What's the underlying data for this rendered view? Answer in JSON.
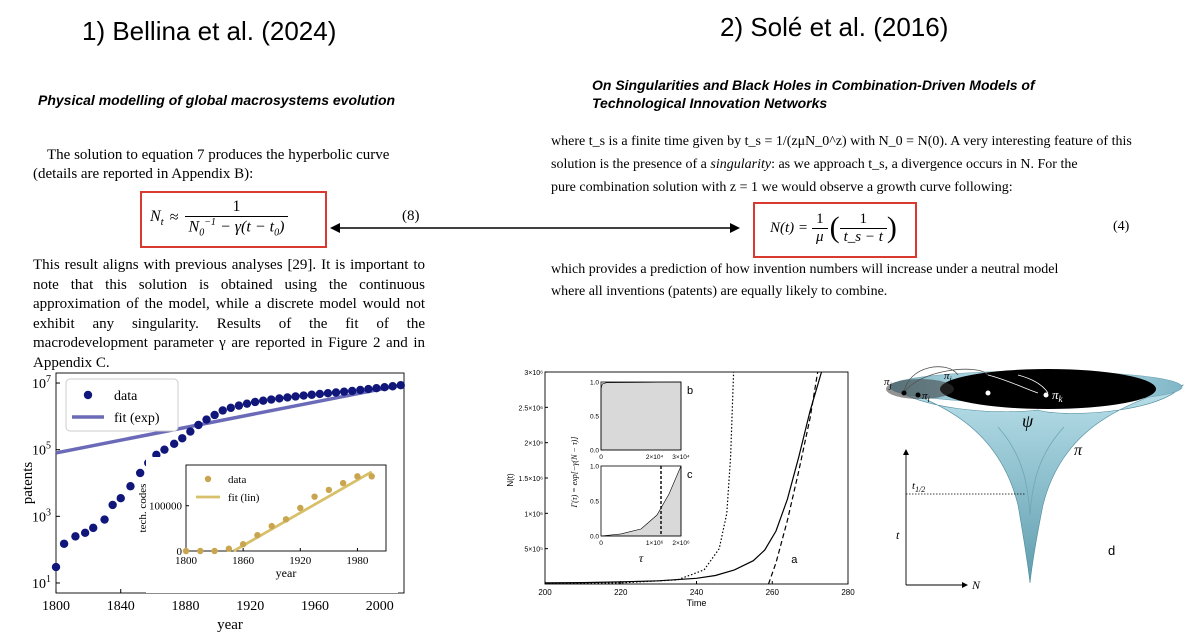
{
  "left": {
    "heading": "1) Bellina et al. (2024)",
    "paper_title": "Physical modelling of global macrosystems evolution",
    "intro_text": "The solution to equation 7 produces the hyperbolic curve (details are reported in Appendix B):",
    "eq_lhs": "N",
    "eq_lhs_sub": "t",
    "eq_approx": "≈",
    "eq_num": "1",
    "eq_den_a": "N",
    "eq_den_a_sub": "0",
    "eq_den_a_sup": "−1",
    "eq_den_b": " − γ(t − t",
    "eq_den_b_sub": "0",
    "eq_den_c": ")",
    "eq_number": "(8)",
    "body_text": "This result aligns with previous analyses [29]. It is important to note that this solution is obtained using the continuous approximation of the model, while a discrete model would not exhibit any singularity. Results of the fit of the macrodevelopment parameter γ are reported in Figure 2 and in Appendix C."
  },
  "right": {
    "heading": "2) Solé et al. (2016)",
    "paper_title_line1": "On Singularities and Black Holes in Combination-Driven Models of",
    "paper_title_line2": "Technological Innovation Networks",
    "text_line1": "where t_s is a finite time given by t_s = 1/(zμN_0^z) with N_0 = N(0). A very interesting feature of this",
    "text_line2a": "solution is the presence of a ",
    "text_line2_em": "singularity",
    "text_line2b": ": as we approach t_s, a divergence occurs in N. For the",
    "text_line3": "pure combination solution with z = 1 we would observe a growth curve following:",
    "eq_lhs": "N(t) =",
    "eq_num1": "1",
    "eq_den1": "μ",
    "eq_num2": "1",
    "eq_den2": "t_s − t",
    "eq_number": "(4)",
    "after_line1": "which provides a prediction of how invention numbers will increase under a neutral model",
    "after_line2": "where all inventions (patents) are equally likely to combine."
  },
  "chart_data": [
    {
      "type": "scatter",
      "panel": "main",
      "xlabel": "year",
      "ylabel": "patents",
      "yscale": "log",
      "xlim": [
        1800,
        2015
      ],
      "ylim": [
        5,
        20000000
      ],
      "xticks": [
        "1800",
        "1840",
        "1880",
        "1920",
        "1960",
        "2000"
      ],
      "yticks": [
        "10^1",
        "10^3",
        "10^5",
        "10^7"
      ],
      "legend": [
        "data",
        "fit (exp)"
      ],
      "legend_position": "top-left",
      "colors": {
        "data": "#10167a",
        "fit": "#6a6ab8"
      },
      "series": [
        {
          "name": "data",
          "x": [
            1800,
            1805,
            1812,
            1818,
            1823,
            1830,
            1835,
            1840,
            1846,
            1852,
            1857,
            1862,
            1867,
            1873,
            1878,
            1883,
            1888,
            1893,
            1898,
            1903,
            1908,
            1913,
            1918,
            1923,
            1928,
            1933,
            1938,
            1943,
            1948,
            1953,
            1958,
            1963,
            1968,
            1973,
            1978,
            1983,
            1988,
            1993,
            1998,
            2003,
            2008,
            2013
          ],
          "y": [
            30,
            150,
            250,
            320,
            450,
            800,
            2200,
            3500,
            8000,
            20000,
            40000,
            70000,
            100000,
            150000,
            220000,
            350000,
            550000,
            800000,
            1100000,
            1500000,
            1800000,
            2100000,
            2400000,
            2700000,
            2950000,
            3200000,
            3450000,
            3700000,
            3950000,
            4200000,
            4450000,
            4700000,
            4950000,
            5200000,
            5500000,
            5800000,
            6200000,
            6600000,
            7000000,
            7500000,
            8000000,
            8600000
          ]
        },
        {
          "name": "fit (exp)",
          "x": [
            1800,
            2015
          ],
          "y": [
            80000,
            9000000
          ]
        }
      ]
    },
    {
      "type": "scatter",
      "panel": "inset",
      "xlabel": "year",
      "ylabel": "tech. codes",
      "xlim": [
        1800,
        2010
      ],
      "ylim": [
        0,
        190000
      ],
      "xticks": [
        "1800",
        "1860",
        "1920",
        "1980"
      ],
      "yticks": [
        "0",
        "100000"
      ],
      "legend": [
        "data",
        "fit (lin)"
      ],
      "legend_position": "top-left",
      "colors": {
        "data": "#c8a54e",
        "fit": "#d8c06a"
      },
      "series": [
        {
          "name": "data",
          "x": [
            1800,
            1815,
            1830,
            1845,
            1860,
            1875,
            1890,
            1905,
            1920,
            1935,
            1950,
            1965,
            1980,
            1995
          ],
          "y": [
            0,
            0,
            0,
            5000,
            15000,
            35000,
            55000,
            70000,
            95000,
            120000,
            135000,
            150000,
            165000,
            165000
          ]
        },
        {
          "name": "fit (lin)",
          "x": [
            1850,
            1995
          ],
          "y": [
            0,
            175000
          ]
        }
      ]
    },
    {
      "type": "line",
      "panel": "a",
      "xlabel": "Time",
      "ylabel": "N(t)",
      "xlim": [
        200,
        280
      ],
      "ylim": [
        0,
        3000000
      ],
      "xticks": [
        "200",
        "220",
        "240",
        "260",
        "280"
      ],
      "yticks": [
        "5×10⁵",
        "1×10⁶",
        "1.5×10⁶",
        "2×10⁶",
        "2.5×10⁶",
        "3×10⁶"
      ],
      "panel_label": "a",
      "series": [
        {
          "name": "",
          "style": "solid",
          "x": [
            200,
            210,
            220,
            230,
            240,
            245,
            250,
            255,
            258,
            261,
            264,
            267,
            270,
            273
          ],
          "y": [
            15000,
            20000,
            30000,
            45000,
            80000,
            120000,
            200000,
            330000,
            480000,
            750000,
            1200000,
            1800000,
            2450000,
            3000000
          ]
        },
        {
          "name": "",
          "style": "dashed",
          "x": [
            259,
            261,
            264,
            267,
            270,
            272
          ],
          "y": [
            0,
            300000,
            900000,
            1600000,
            2350000,
            3000000
          ]
        },
        {
          "name": "",
          "style": "dotted",
          "x": [
            200,
            220,
            235,
            242,
            246,
            248,
            249,
            249.8
          ],
          "y": [
            5000,
            15000,
            60000,
            200000,
            500000,
            1000000,
            1800000,
            3000000
          ]
        }
      ]
    },
    {
      "type": "area",
      "panel": "b",
      "xlim": [
        0,
        30000
      ],
      "ylim": [
        0,
        1
      ],
      "xticks": [
        "0",
        "2×10⁴",
        "3×10⁴"
      ],
      "yticks": [
        "0.0",
        "0.5",
        "1.0"
      ],
      "panel_label": "b",
      "series": [
        {
          "name": "",
          "x": [
            0,
            500,
            2000,
            30000
          ],
          "y": [
            0.9,
            0.97,
            0.99,
            1.0
          ]
        }
      ]
    },
    {
      "type": "area",
      "panel": "c",
      "xlabel": "τ",
      "ylabel": "Γ(τ) = exp[−γ(N − τ)]",
      "xlim": [
        0,
        20000
      ],
      "ylim": [
        0,
        1
      ],
      "xticks": [
        "0",
        "1×10⁶",
        "2×10⁶"
      ],
      "yticks": [
        "0.0",
        "0.5",
        "1.0"
      ],
      "panel_label": "c",
      "series": [
        {
          "name": "",
          "x": [
            0,
            5000,
            10000,
            14000,
            17000,
            20000
          ],
          "y": [
            0.0,
            0.03,
            0.1,
            0.3,
            0.6,
            1.0
          ]
        }
      ]
    }
  ],
  "funnel": {
    "labels": {
      "pi_j": "π",
      "pi_j_sub": "j",
      "pi_i": "π",
      "pi_i_sub": "i",
      "pi_i2": "π",
      "pi_i2_sub": "i",
      "pi_k": "π",
      "pi_k_sub": "k",
      "psi": "ψ",
      "pi": "π",
      "t_half": "t",
      "t_half_sub": "1/2",
      "t_axis": "t",
      "n_axis": "N",
      "panel": "d"
    },
    "colors": {
      "top": "#b9e0ea",
      "bottom": "#5f9dae",
      "hole": "#000000"
    }
  },
  "arrow": {
    "color": "#000000"
  }
}
